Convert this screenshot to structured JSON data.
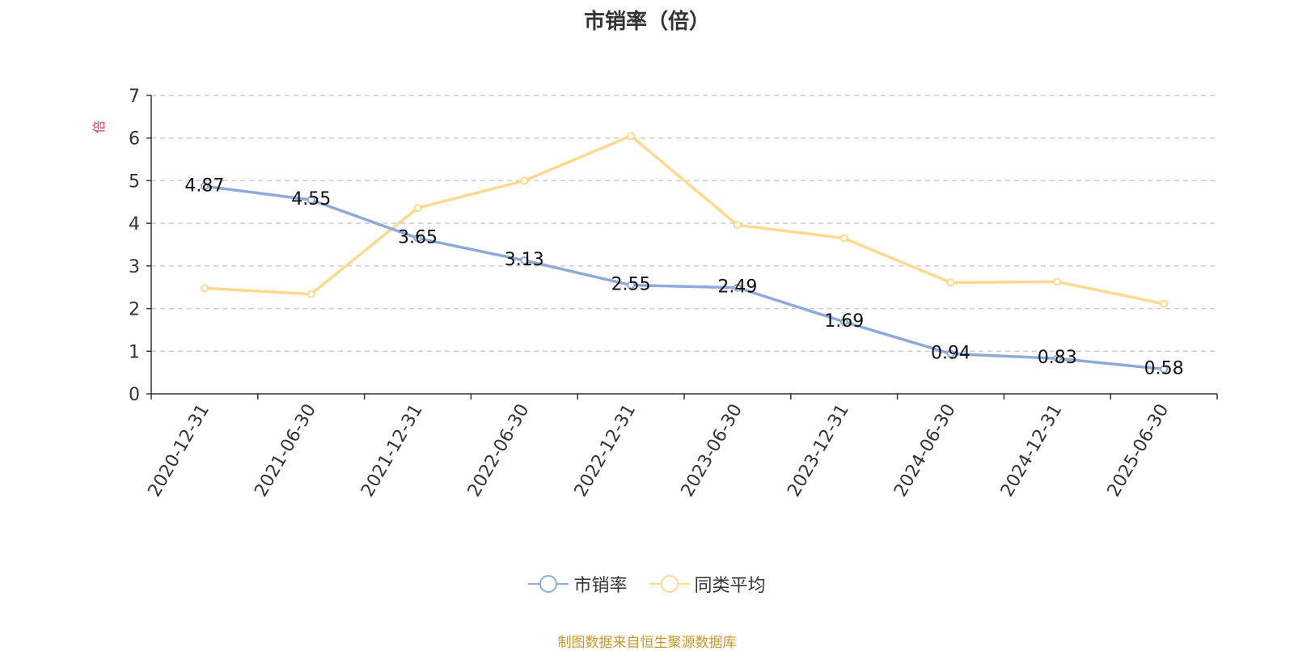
{
  "chart_data": {
    "type": "line",
    "title": "市销率（倍）",
    "ylabel": "倍",
    "xlabel": "",
    "ylim": [
      0,
      7
    ],
    "yticks": [
      "0",
      "1",
      "2",
      "3",
      "4",
      "5",
      "6",
      "7"
    ],
    "categories": [
      "2020-12-31",
      "2021-06-30",
      "2021-12-31",
      "2022-06-30",
      "2022-12-31",
      "2023-06-30",
      "2023-12-31",
      "2024-06-30",
      "2024-12-31",
      "2025-06-30"
    ],
    "series": [
      {
        "name": "市销率",
        "color": "#8eaad8",
        "values": [
          4.87,
          4.55,
          3.65,
          3.13,
          2.55,
          2.49,
          1.69,
          0.94,
          0.83,
          0.58
        ],
        "labels": [
          "4.87",
          "4.55",
          "3.65",
          "3.13",
          "2.55",
          "2.49",
          "1.69",
          "0.94",
          "0.83",
          "0.58"
        ]
      },
      {
        "name": "同类平均",
        "color": "#fbd98e",
        "values": [
          2.48,
          2.34,
          4.36,
          5.0,
          6.05,
          3.96,
          3.65,
          2.61,
          2.63,
          2.11
        ]
      }
    ],
    "grid": true,
    "legend": "bottom-center"
  },
  "source_note": "制图数据来自恒生聚源数据库",
  "colors": {
    "ylabel": "#e03c3c",
    "axis": "#333333",
    "grid": "#cccccc"
  }
}
